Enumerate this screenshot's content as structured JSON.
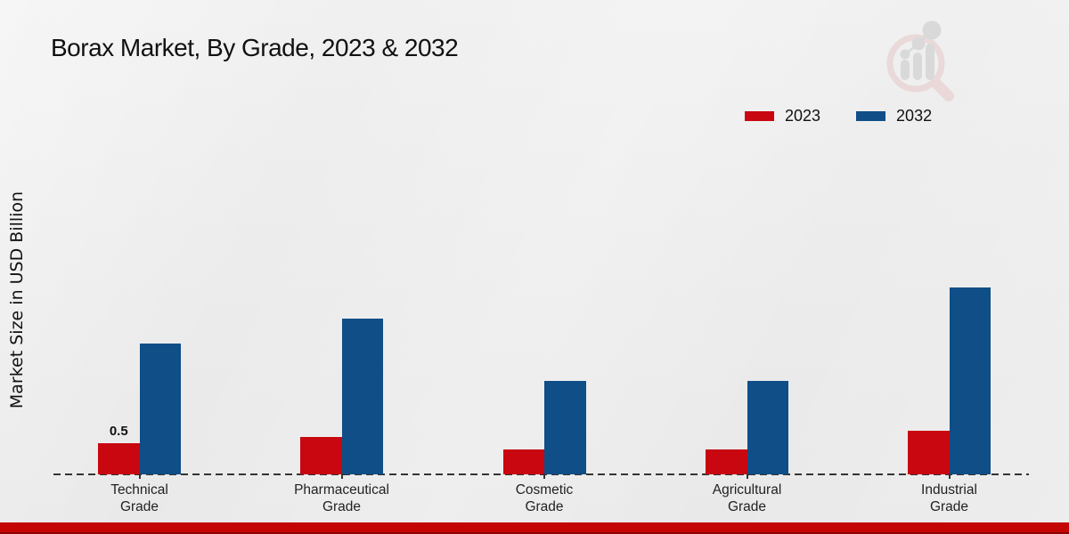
{
  "chart_data": {
    "type": "bar",
    "title": "Borax Market, By Grade, 2023 & 2032",
    "xlabel": "",
    "ylabel": "Market Size in USD Billion",
    "categories": [
      "Technical Grade",
      "Pharmaceutical Grade",
      "Cosmetic Grade",
      "Agricultural Grade",
      "Industrial Grade"
    ],
    "series": [
      {
        "name": "2023",
        "color": "#c80710",
        "values": [
          0.5,
          0.6,
          0.4,
          0.4,
          0.7
        ]
      },
      {
        "name": "2032",
        "color": "#0f4e87",
        "values": [
          2.1,
          2.5,
          1.5,
          1.5,
          3.0
        ]
      }
    ],
    "ylim": [
      0,
      3.3
    ],
    "grid": false,
    "legend_position": "top-right",
    "axis_style": "dashed-baseline-only",
    "annotations": [
      {
        "series": "2023",
        "category": "Technical Grade",
        "text": "0.5"
      }
    ]
  },
  "branding": {
    "footer_bar_color": "#c30505",
    "logo_icon": "magnifier-bar-chart-watermark"
  }
}
